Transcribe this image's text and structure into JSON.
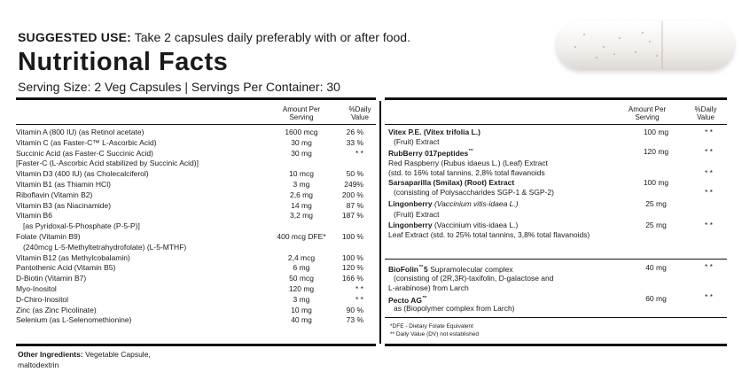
{
  "suggested_use": {
    "label": "SUGGESTED USE:",
    "text": "Take 2 capsules daily preferably with or after food."
  },
  "title": "Nutritional Facts",
  "serving": "Serving Size: 2 Veg Capsules | Servings Per Container: 30",
  "headers": {
    "amount": [
      "Amount Per",
      "Serving"
    ],
    "dv": [
      "%Daily",
      "Value"
    ]
  },
  "left_rows": [
    {
      "label": "Vitamin A (800 IU) (as Retinol acetate)",
      "amount": "1600 mcg",
      "dv": "26 %"
    },
    {
      "label": "Vitamin C (as Faster-C™ L-Ascorbic Acid)",
      "amount": "30 mg",
      "dv": "33 %"
    },
    {
      "label": "Succinic Acid (as Faster-C Succinic Acid)",
      "amount": "30 mg",
      "dv": "* *"
    },
    {
      "label": "[Faster-C (L-Ascorbic Acid stabilized by Succinic Acid)]",
      "amount": "",
      "dv": ""
    },
    {
      "label": "Vitamin D3 (400 IU) (as Cholecalciferol)",
      "amount": "10 mcg",
      "dv": "50 %"
    },
    {
      "label": "Vitamin B1 (as Thiamin HCl)",
      "amount": "3 mg",
      "dv": "249%"
    },
    {
      "label": "Riboflavin (Vitamin B2)",
      "amount": "2,6 mg",
      "dv": "200 %"
    },
    {
      "label": "Vitamin B3 (as Niacinamide)",
      "amount": "14 mg",
      "dv": "87 %"
    },
    {
      "label": "Vitamin B6",
      "amount": "3,2 mg",
      "dv": "187 %"
    },
    {
      "label": "[as Pyridoxal-5-Phosphate (P-5-P)]",
      "amount": "",
      "dv": ""
    },
    {
      "label": "Folate (Vitamin B9)",
      "amount": "400 mcg DFE*",
      "dv": "100 %"
    },
    {
      "label": "(240mcg L-5-Methyltetrahydrofolate) (L-5-MTHF)",
      "amount": "",
      "dv": ""
    },
    {
      "label": "Vitamin B12 (as Methylcobalamin)",
      "amount": "2,4 mcg",
      "dv": "100 %"
    },
    {
      "label": "Pantothenic Acid (Vitamin B5)",
      "amount": "6 mg",
      "dv": "120 %"
    },
    {
      "label": "D-Biotin (Vitamin B7)",
      "amount": "50 mcg",
      "dv": "166 %"
    },
    {
      "label": "Myo-Inositol",
      "amount": "120 mg",
      "dv": "* *"
    },
    {
      "label": "D-Chiro-Inositol",
      "amount": "3 mg",
      "dv": "* *"
    },
    {
      "label": "Zinc (as Zinc Picolinate)",
      "amount": "10 mg",
      "dv": "90 %"
    },
    {
      "label": "Selenium (as L-Selenomethionine)",
      "amount": "40 mg",
      "dv": "73 %"
    }
  ],
  "right_rows": {
    "vitex_name": "Vitex P.E. (Vitex trifolia L.)",
    "vitex_sub": "(Fruit) Extract",
    "vitex_amount": "100 mg",
    "vitex_dv": "* *",
    "rubberry_name": "RubBerry 017peptides",
    "rubberry_tm": "™",
    "rubberry_amount": "120 mg",
    "rubberry_dv": "* *",
    "rubberry_sub1": "Red Raspberry (Rubus idaeus L.) (Leaf) Extract",
    "rubberry_sub2": "(std. to 16% total tannins, 2,8% total flavanoids",
    "rubberry_dv2": "* *",
    "sarsa_name": "Sarsaparilla (Smilax) (Root) Extract",
    "sarsa_amount": "100 mg",
    "sarsa_sub": "(consisting of Polysaccharides SGP-1 & SGP-2)",
    "sarsa_dv": "* *",
    "ling1_name": "Lingonberry",
    "ling1_latin": "(Vaccinium vitis-idaea L.)",
    "ling1_amount": "25 mg",
    "ling1_sub": "(Fruit) Extract",
    "ling2_name": "Lingonberry",
    "ling2_latin": "(Vaccinium vitis-idaea L.)",
    "ling2_amount": "25 mg",
    "ling2_dv": "* *",
    "ling2_sub": "Leaf Extract (std. to 25% total tannins, 3,8% total flavanoids)",
    "biofolin_name": "BioFolin",
    "biofolin_tm": "™",
    "biofolin_num": "5",
    "biofolin_desc": "Supramolecular complex",
    "biofolin_amount": "40 mg",
    "biofolin_dv": "* *",
    "biofolin_sub1": "(consisting of (2R,3R)-taxifolin, D-galactose and",
    "biofolin_sub2": "L-arabinose) from Larch",
    "pecto_name": "Pecto AG",
    "pecto_tm": "™",
    "pecto_amount": "60 mg",
    "pecto_dv": "* *",
    "pecto_sub": "as (Biopolymer complex from Larch)"
  },
  "footnotes": [
    "*DFE - Dietary Folate Equivalent",
    "** Daily Value (DV) not established"
  ],
  "other": {
    "label": "Other Ingredients:",
    "line1": "Vegetable Capsule,",
    "line2": "maltodextrin"
  }
}
